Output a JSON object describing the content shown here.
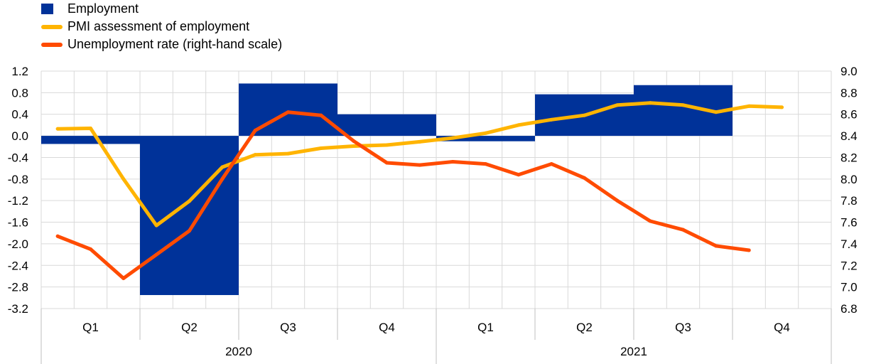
{
  "chart_data": {
    "type": "bar+line",
    "legend_placement": "top-left",
    "grid": true,
    "colors": {
      "employment": "#003299",
      "pmi": "#FFB400",
      "unemployment": "#FF4B00",
      "grid": "#d9d9d9"
    },
    "legend": [
      {
        "key": "employment",
        "label": "Employment",
        "kind": "bar"
      },
      {
        "key": "pmi",
        "label": "PMI assessment of employment",
        "kind": "line"
      },
      {
        "key": "unemployment",
        "label": "Unemployment rate (right-hand scale)",
        "kind": "line"
      }
    ],
    "y_left": {
      "min": -3.2,
      "max": 1.2,
      "ticks": [
        "1.2",
        "0.8",
        "0.4",
        "0.0",
        "-0.4",
        "-0.8",
        "-1.2",
        "-1.6",
        "-2.0",
        "-2.4",
        "-2.8",
        "-3.2"
      ]
    },
    "y_right": {
      "min": 6.8,
      "max": 9.0,
      "ticks": [
        "9.0",
        "8.8",
        "8.6",
        "8.4",
        "8.2",
        "8.0",
        "7.8",
        "7.6",
        "7.4",
        "7.2",
        "7.0",
        "6.8"
      ]
    },
    "quarters": [
      "Q1",
      "Q2",
      "Q3",
      "Q4",
      "Q1",
      "Q2",
      "Q3",
      "Q4"
    ],
    "years": [
      "2020",
      "2021"
    ],
    "series": [
      {
        "name": "Employment",
        "key": "employment",
        "type": "bar",
        "categories": [
          "2020 Q1",
          "2020 Q2",
          "2020 Q3",
          "2020 Q4",
          "2021 Q1",
          "2021 Q2",
          "2021 Q3"
        ],
        "values": [
          -0.15,
          -2.95,
          0.97,
          0.4,
          -0.1,
          0.77,
          0.94
        ]
      },
      {
        "name": "PMI assessment of employment",
        "key": "pmi",
        "type": "line",
        "axis": "left",
        "months": [
          "2020-01",
          "2020-02",
          "2020-03",
          "2020-04",
          "2020-05",
          "2020-06",
          "2020-07",
          "2020-08",
          "2020-09",
          "2020-10",
          "2020-11",
          "2020-12",
          "2021-01",
          "2021-02",
          "2021-03",
          "2021-04",
          "2021-05",
          "2021-06",
          "2021-07",
          "2021-08",
          "2021-09",
          "2021-10",
          "2021-11"
        ],
        "values": [
          0.13,
          0.14,
          -0.8,
          -1.66,
          -1.21,
          -0.58,
          -0.35,
          -0.33,
          -0.23,
          -0.19,
          -0.17,
          -0.11,
          -0.04,
          0.05,
          0.2,
          0.3,
          0.38,
          0.57,
          0.61,
          0.57,
          0.44,
          0.55,
          0.53
        ]
      },
      {
        "name": "Unemployment rate (right-hand scale)",
        "key": "unemployment",
        "type": "line",
        "axis": "right",
        "months": [
          "2020-01",
          "2020-02",
          "2020-03",
          "2020-04",
          "2020-05",
          "2020-06",
          "2020-07",
          "2020-08",
          "2020-09",
          "2020-10",
          "2020-11",
          "2020-12",
          "2021-01",
          "2021-02",
          "2021-03",
          "2021-04",
          "2021-05",
          "2021-06",
          "2021-07",
          "2021-08",
          "2021-09",
          "2021-10"
        ],
        "values": [
          7.47,
          7.35,
          7.08,
          7.3,
          7.52,
          8.0,
          8.45,
          8.62,
          8.59,
          8.35,
          8.15,
          8.13,
          8.16,
          8.14,
          8.04,
          8.14,
          8.01,
          7.8,
          7.61,
          7.53,
          7.38,
          7.34
        ]
      }
    ]
  }
}
